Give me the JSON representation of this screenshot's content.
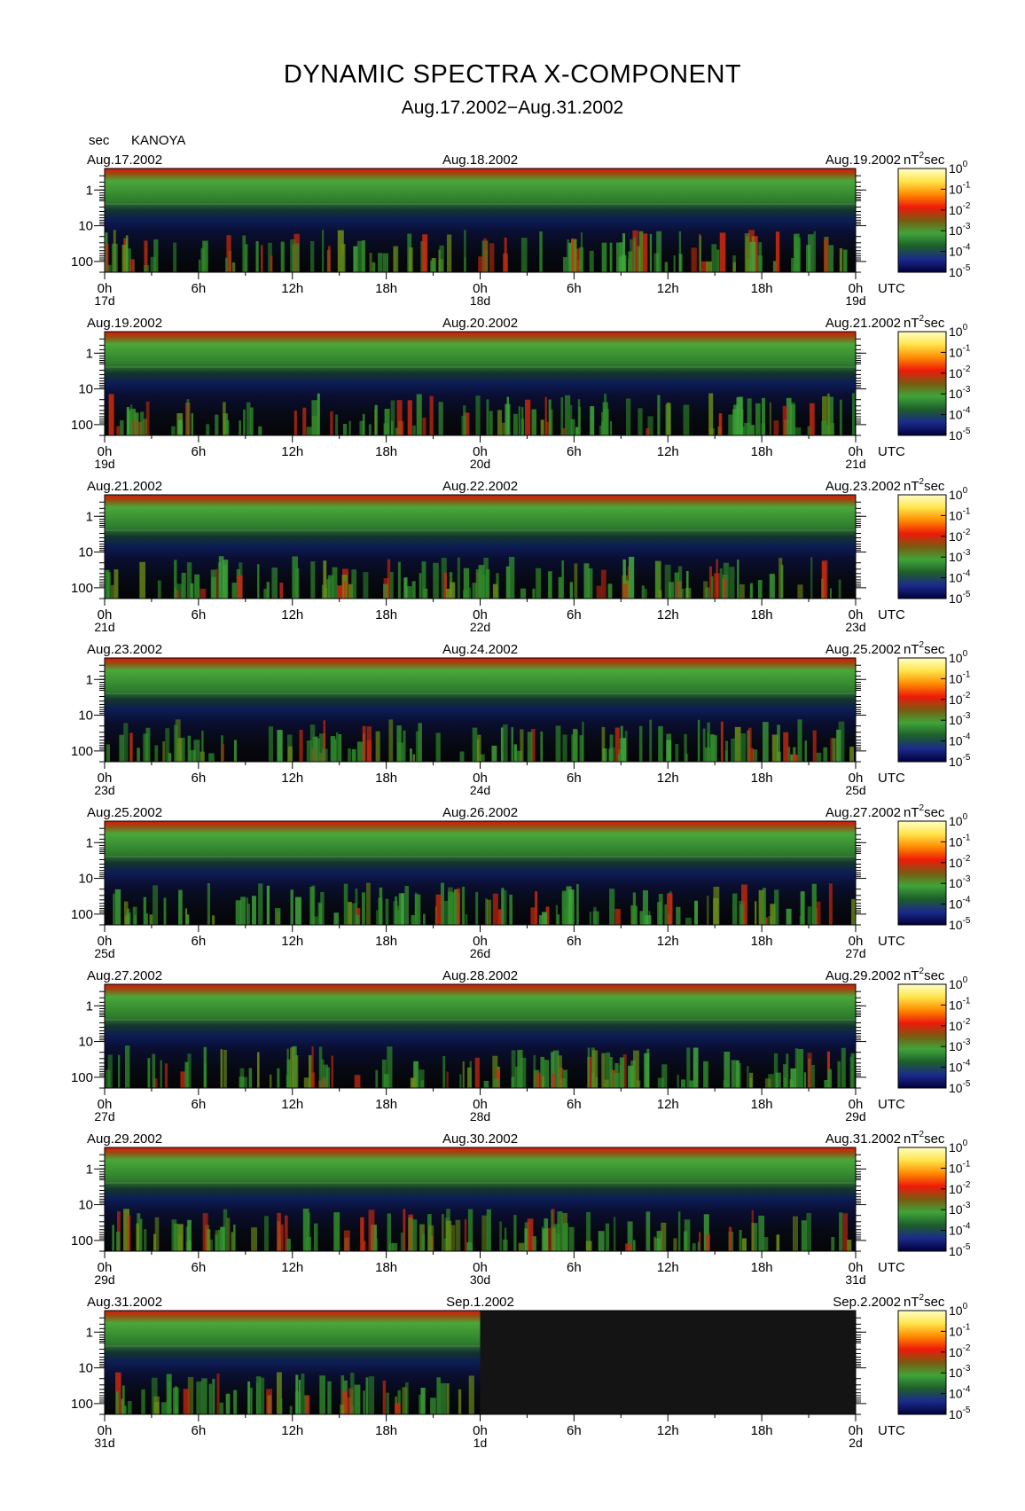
{
  "title": "DYNAMIC SPECTRA X-COMPONENT",
  "subtitle": "Aug.17.2002−Aug.31.2002",
  "header": {
    "y_unit": "sec",
    "station": "KANOYA"
  },
  "chart_data": {
    "type": "heatmap",
    "title": "DYNAMIC SPECTRA X-COMPONENT",
    "subtitle": "Aug.17.2002−Aug.31.2002",
    "station": "KANOYA",
    "y_axis": {
      "label": "sec",
      "scale": "log",
      "reversed": true,
      "tick_labels": [
        "1",
        "10",
        "100"
      ],
      "ylim": [
        0.25,
        200
      ]
    },
    "x_axis": {
      "unit": "UTC",
      "tick_labels": [
        "0h",
        "6h",
        "12h",
        "18h",
        "0h",
        "6h",
        "12h",
        "18h",
        "0h"
      ],
      "span_hours": 48
    },
    "colorbar": {
      "unit_base": "nT",
      "unit_sup": "2",
      "unit_tail": "sec",
      "exponents": [
        "0",
        "-1",
        "-2",
        "-3",
        "-4",
        "-5"
      ],
      "scale": "log",
      "range": [
        1e-05,
        1
      ],
      "colors": [
        "#00003a",
        "#1b2a8c",
        "#1d5e2a",
        "#3fa43a",
        "#7a5a10",
        "#ee1a0a",
        "#ff8a00",
        "#ffe44a",
        "#ffffc8"
      ]
    },
    "panels": [
      {
        "left_date": "Aug.17.2002",
        "mid_date": "Aug.18.2002",
        "right_date": "Aug.19.2002",
        "days": [
          "17d",
          "18d",
          "19d"
        ]
      },
      {
        "left_date": "Aug.19.2002",
        "mid_date": "Aug.20.2002",
        "right_date": "Aug.21.2002",
        "days": [
          "19d",
          "20d",
          "21d"
        ]
      },
      {
        "left_date": "Aug.21.2002",
        "mid_date": "Aug.22.2002",
        "right_date": "Aug.23.2002",
        "days": [
          "21d",
          "22d",
          "23d"
        ]
      },
      {
        "left_date": "Aug.23.2002",
        "mid_date": "Aug.24.2002",
        "right_date": "Aug.25.2002",
        "days": [
          "23d",
          "24d",
          "25d"
        ]
      },
      {
        "left_date": "Aug.25.2002",
        "mid_date": "Aug.26.2002",
        "right_date": "Aug.27.2002",
        "days": [
          "25d",
          "26d",
          "27d"
        ]
      },
      {
        "left_date": "Aug.27.2002",
        "mid_date": "Aug.28.2002",
        "right_date": "Aug.29.2002",
        "days": [
          "27d",
          "28d",
          "29d"
        ]
      },
      {
        "left_date": "Aug.29.2002",
        "mid_date": "Aug.30.2002",
        "right_date": "Aug.31.2002",
        "days": [
          "29d",
          "30d",
          "31d"
        ]
      },
      {
        "left_date": "Aug.31.2002",
        "mid_date": "Sep.1.2002",
        "right_date": "Sep.2.2002",
        "days": [
          "31d",
          "1d",
          "2d"
        ],
        "data_until_hour": 24
      }
    ]
  }
}
